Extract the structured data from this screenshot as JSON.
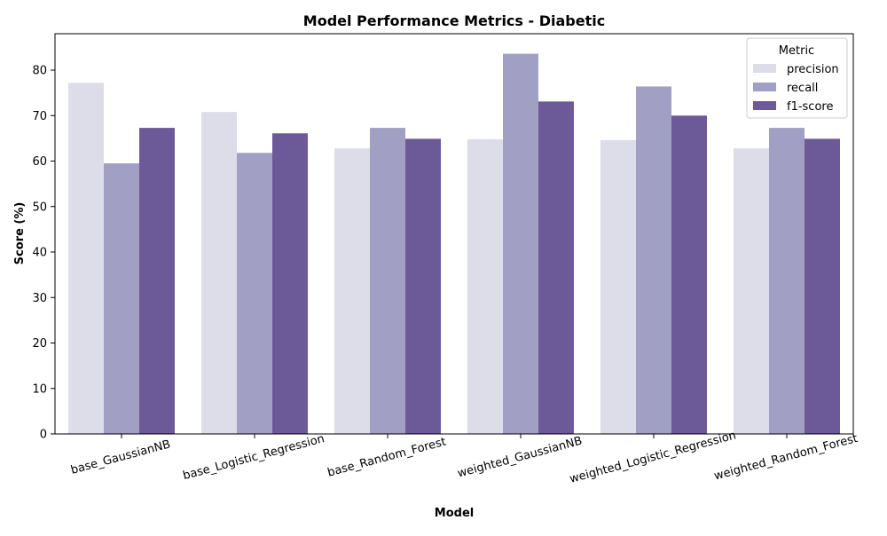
{
  "chart_data": {
    "type": "bar",
    "title": "Model Performance Metrics - Diabetic",
    "xlabel": "Model",
    "ylabel": "Score (%)",
    "ylim": [
      0,
      88
    ],
    "yticks": [
      0,
      10,
      20,
      30,
      40,
      50,
      60,
      70,
      80
    ],
    "categories": [
      "base_GaussianNB",
      "base_Logistic_Regression",
      "base_Random_Forest",
      "weighted_GaussianNB",
      "weighted_Logistic_Regression",
      "weighted_Random_Forest"
    ],
    "series": [
      {
        "name": "precision",
        "color": "#dddce9",
        "values": [
          77.2,
          70.8,
          62.8,
          64.8,
          64.6,
          62.8
        ]
      },
      {
        "name": "recall",
        "color": "#a29fc4",
        "values": [
          59.5,
          61.8,
          67.3,
          83.6,
          76.4,
          67.3
        ]
      },
      {
        "name": "f1-score",
        "color": "#6c5a98",
        "values": [
          67.3,
          66.1,
          64.9,
          73.1,
          70.0,
          64.9
        ]
      }
    ],
    "legend": {
      "title": "Metric",
      "placement": "top-right"
    },
    "grid": false
  }
}
